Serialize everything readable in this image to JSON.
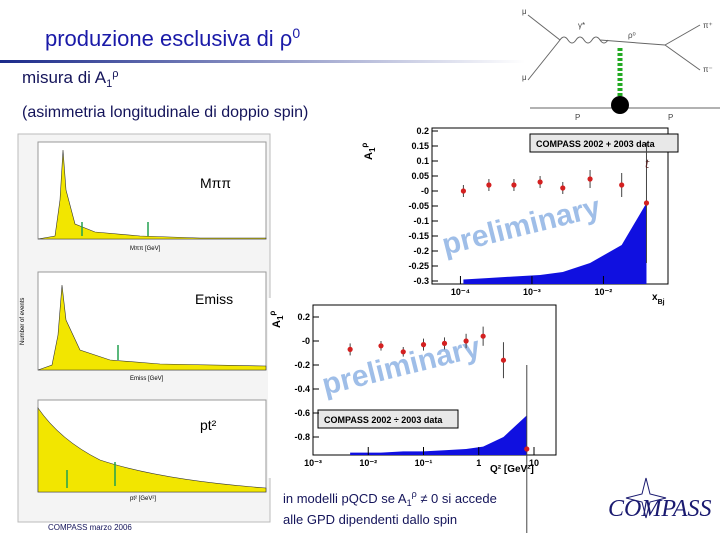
{
  "header": {
    "title": "produzione esclusiva di ρ",
    "title_sup": "0",
    "subtitle": "misura di A",
    "subtitle_sub": "1",
    "subtitle_sup": "ρ",
    "subtitle2": "(asimmetria longitudinale di doppio spin)"
  },
  "diagram": {
    "labels": [
      "μ",
      "γ*",
      "ρ⁰",
      "π⁺",
      "π⁻",
      "μ",
      "P",
      "P"
    ]
  },
  "histograms": {
    "overlay_labels": [
      "Mππ",
      "Emiss",
      "pt²"
    ],
    "axis_labels": [
      "Mππ [GeV]",
      "Emiss [GeV]",
      "pt² [GeV²]"
    ],
    "y_label": "Number of events"
  },
  "chart_data": [
    {
      "type": "scatter",
      "xscale": "log",
      "y_label": "A",
      "y_label_sub": "1",
      "y_label_sup": "ρ",
      "x_label": "x",
      "x_label_sub": "Bj",
      "legend_box": "COMPASS 2002 + 2003 data",
      "watermark": "preliminary",
      "annotation": "t",
      "xlim": [
        4e-05,
        0.08
      ],
      "xticks": [
        {
          "value": 0.0001,
          "label": "10⁻⁴"
        },
        {
          "value": 0.001,
          "label": "10⁻³"
        },
        {
          "value": 0.01,
          "label": "10⁻²"
        }
      ],
      "ylim": [
        -0.31,
        0.21
      ],
      "yticks": [
        0.2,
        0.15,
        0.1,
        0.05,
        {
          "value": 0,
          "label": "-0"
        },
        -0.05,
        -0.1,
        -0.15,
        -0.2,
        -0.25,
        -0.3
      ],
      "x": [
        0.00011,
        0.00025,
        0.00056,
        0.0013,
        0.0027,
        0.0065,
        0.018,
        0.04
      ],
      "series": [
        {
          "color": "#d42020",
          "values": [
            0.0,
            0.02,
            0.02,
            0.03,
            0.01,
            0.04,
            0.02,
            -0.04
          ],
          "errors": [
            0.02,
            0.02,
            0.02,
            0.02,
            0.02,
            0.03,
            0.04,
            0.2
          ]
        }
      ],
      "band": {
        "color": "#1010e0",
        "values": [
          -0.295,
          -0.29,
          -0.285,
          -0.28,
          -0.27,
          -0.24,
          -0.18,
          -0.04
        ]
      }
    },
    {
      "type": "scatter",
      "xscale": "log",
      "y_label": "A",
      "y_label_sub": "1",
      "y_label_sup": "ρ",
      "x_label": "Q² [GeV²]",
      "legend_box": "COMPASS 2002 ÷ 2003 data",
      "watermark": "preliminary",
      "xlim": [
        0.001,
        25
      ],
      "xticks": [
        {
          "value": 0.001,
          "label": "10⁻³"
        },
        {
          "value": 0.01,
          "label": "10⁻²"
        },
        {
          "value": 0.1,
          "label": "10⁻¹"
        },
        1,
        10
      ],
      "ylim": [
        -0.95,
        0.3
      ],
      "yticks": [
        0.2,
        {
          "value": 0,
          "label": "-0"
        },
        -0.2,
        -0.4,
        -0.6,
        -0.8
      ],
      "x": [
        0.0047,
        0.017,
        0.043,
        0.1,
        0.24,
        0.59,
        1.2,
        2.8,
        7.4
      ],
      "series": [
        {
          "color": "#d42020",
          "values": [
            -0.07,
            -0.04,
            -0.09,
            -0.03,
            -0.02,
            0.0,
            0.04,
            -0.16,
            -0.9
          ],
          "errors": [
            0.05,
            0.04,
            0.04,
            0.05,
            0.05,
            0.06,
            0.08,
            0.15,
            0.7
          ]
        }
      ],
      "band": {
        "color": "#1010e0",
        "values": [
          -0.93,
          -0.93,
          -0.92,
          -0.92,
          -0.91,
          -0.9,
          -0.88,
          -0.8,
          -0.62
        ]
      }
    }
  ],
  "note": {
    "line1": "in modelli pQCD se A",
    "line1_sub": "1",
    "line1_sup": "ρ",
    "line1_rest": " ≠ 0 si accede",
    "line2": "alle GPD dipendenti dallo spin"
  },
  "footer": "COMPASS marzo 2006",
  "logo": "COMPASS"
}
